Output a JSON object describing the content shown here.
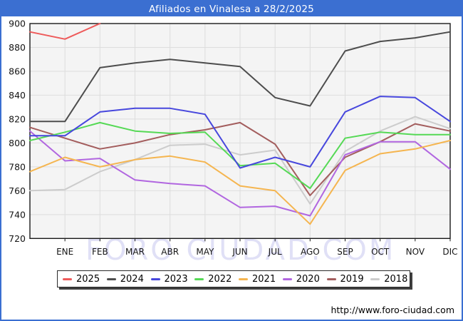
{
  "title": "Afiliados en Vinalesa a 28/2/2025",
  "watermark": "FORO CIUDAD.COM",
  "footer": {
    "url": "http://www.foro-ciudad.com"
  },
  "colors": {
    "frame": "#3b6fd1",
    "titlebar_bg": "#3b6fd1",
    "titlebar_text": "#ffffff",
    "plot_bg": "#f4f4f4",
    "grid": "#dddddd",
    "axis_border": "#1a1a1a",
    "label_text": "#151515",
    "watermark_text": "#6464d2"
  },
  "chart_data": {
    "type": "line",
    "title": "Afiliados en Vinalesa a 28/2/2025",
    "categories": [
      "ENE",
      "FEB",
      "MAR",
      "ABR",
      "MAY",
      "JUN",
      "JUL",
      "AGO",
      "SEP",
      "OCT",
      "NOV",
      "DIC"
    ],
    "note": "each series has a leading point drawn on the left axis (previous December value); monthly points fall on the month gridlines",
    "ylim": [
      720,
      900
    ],
    "ytick_step": 20,
    "grid": true,
    "legend_position": "bottom",
    "series": [
      {
        "name": "2025",
        "color": "#ee5a5a",
        "values": [
          893,
          887,
          900
        ]
      },
      {
        "name": "2024",
        "color": "#4d4d4d",
        "values": [
          818,
          818,
          863,
          867,
          870,
          867,
          864,
          838,
          831,
          877,
          885,
          888,
          893
        ]
      },
      {
        "name": "2023",
        "color": "#4747dd",
        "values": [
          806,
          806,
          826,
          829,
          829,
          824,
          779,
          788,
          780,
          826,
          839,
          838,
          818
        ]
      },
      {
        "name": "2022",
        "color": "#55d955",
        "values": [
          802,
          809,
          817,
          810,
          808,
          809,
          781,
          783,
          762,
          804,
          809,
          807,
          807
        ]
      },
      {
        "name": "2021",
        "color": "#f5b54f",
        "values": [
          776,
          788,
          780,
          786,
          789,
          784,
          764,
          760,
          732,
          777,
          791,
          795,
          802
        ]
      },
      {
        "name": "2020",
        "color": "#b166e0",
        "values": [
          810,
          785,
          787,
          769,
          766,
          764,
          746,
          747,
          739,
          790,
          801,
          801,
          778
        ]
      },
      {
        "name": "2019",
        "color": "#a35d5d",
        "values": [
          813,
          804,
          795,
          800,
          807,
          811,
          817,
          799,
          756,
          788,
          801,
          816,
          810
        ]
      },
      {
        "name": "2018",
        "color": "#cccccc",
        "values": [
          760,
          761,
          776,
          786,
          798,
          799,
          790,
          794,
          749,
          793,
          810,
          822,
          812
        ]
      }
    ]
  }
}
